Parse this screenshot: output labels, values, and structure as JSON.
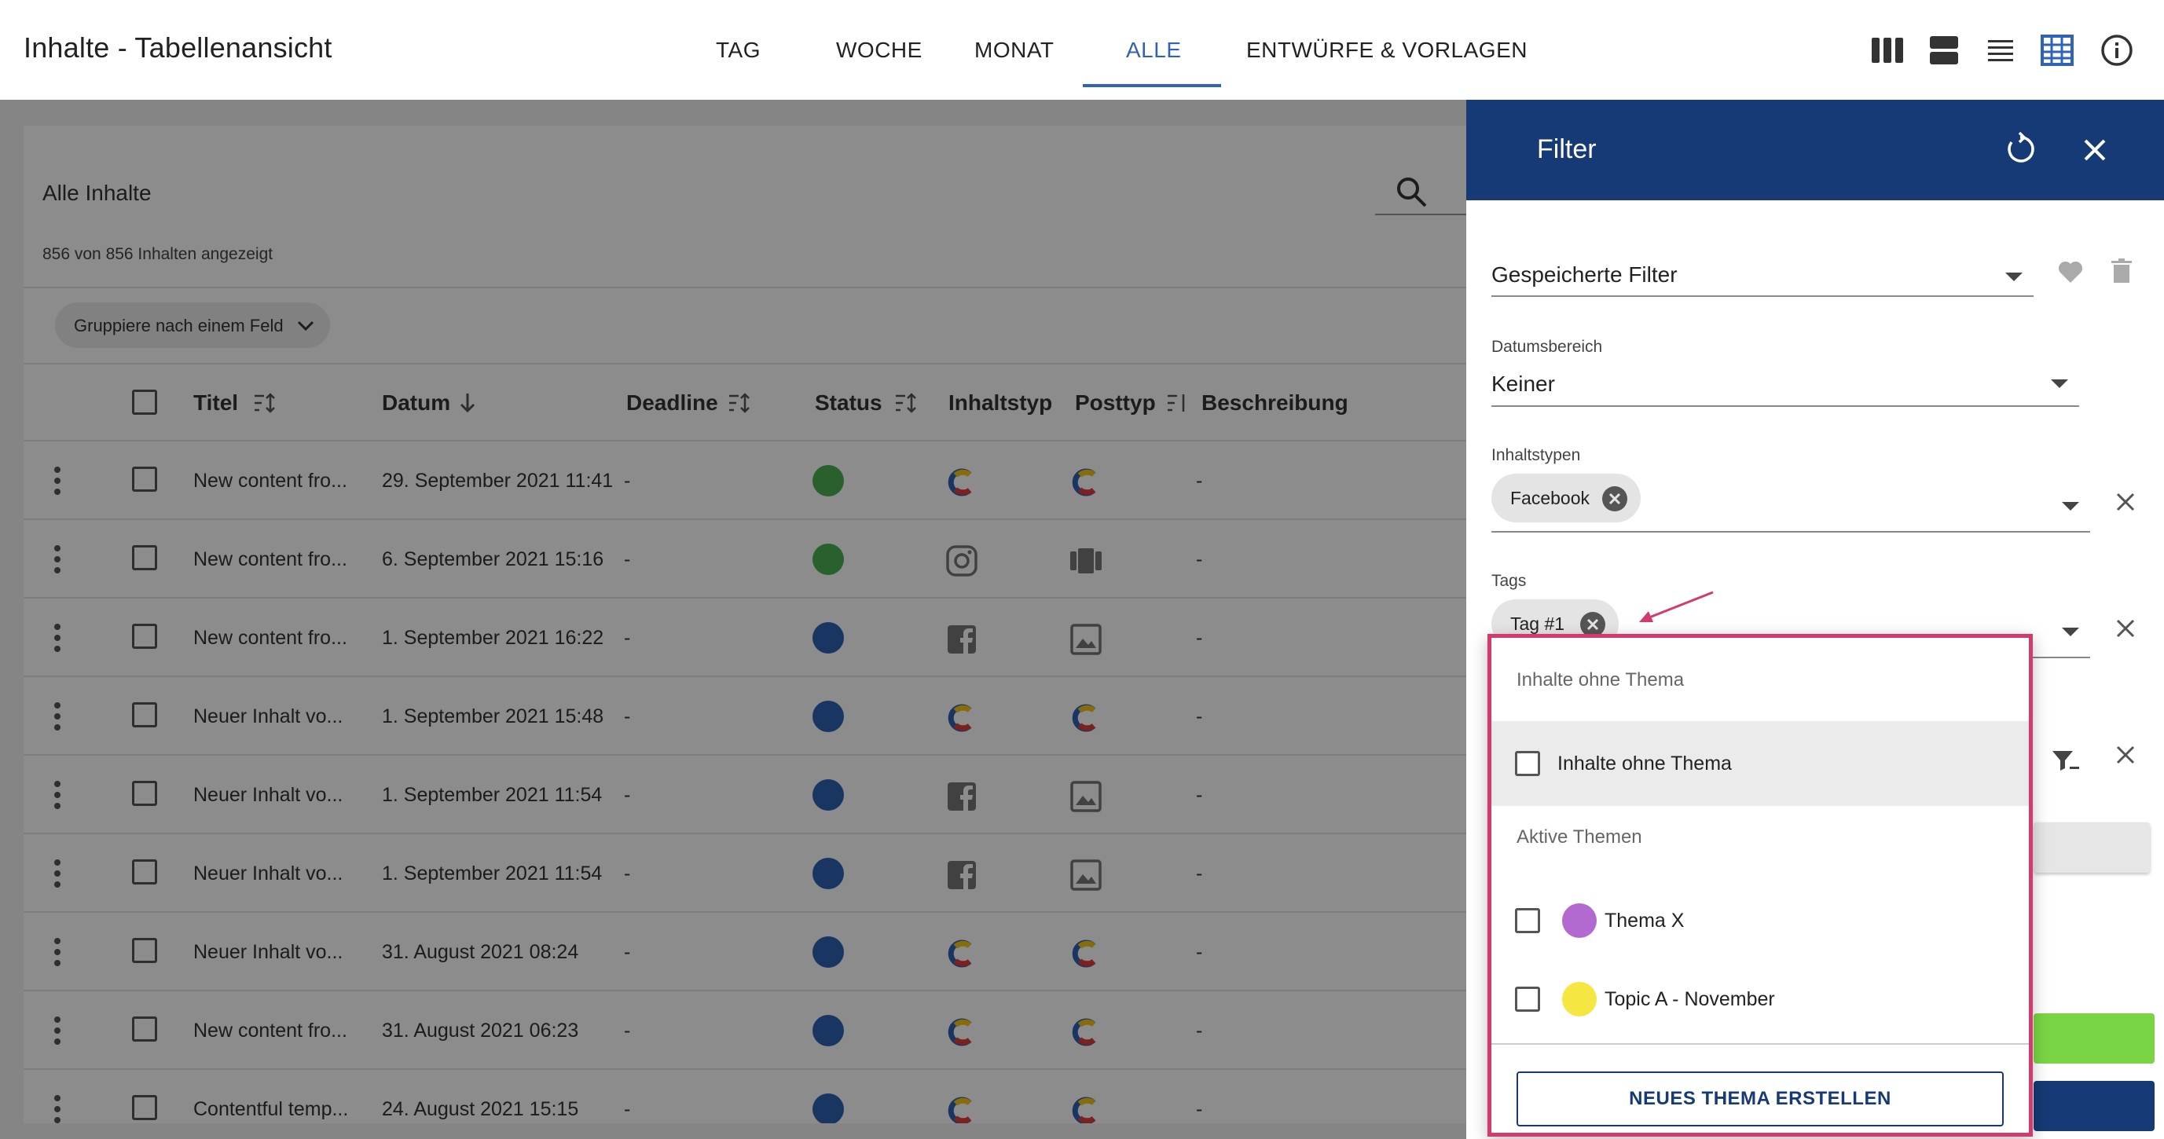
{
  "header": {
    "title": "Inhalte - Tabellenansicht",
    "tabs": [
      {
        "label": "TAG",
        "active": false
      },
      {
        "label": "WOCHE",
        "active": false
      },
      {
        "label": "MONAT",
        "active": false
      },
      {
        "label": "ALLE",
        "active": true
      },
      {
        "label": "ENTWÜRFE & VORLAGEN",
        "active": false
      }
    ],
    "view_icons": [
      "columns-view-icon",
      "rows-view-icon",
      "list-view-icon",
      "table-view-icon",
      "info-icon"
    ],
    "accent_color": "#2f63b5"
  },
  "content": {
    "title": "Alle Inhalte",
    "count_text": "856 von 856 Inhalten angezeigt",
    "group_label": "Gruppiere nach einem Feld",
    "columns": [
      "Titel",
      "Datum",
      "Deadline",
      "Status",
      "Inhaltstyp",
      "Posttyp",
      "Beschreibung"
    ],
    "rows": [
      {
        "title": "New content fro...",
        "date": "29. September 2021 11:41",
        "deadline": "-",
        "status_color": "#4caf50",
        "inhaltstyp": "contentful-icon",
        "posttyp": "contentful-icon",
        "description": "-"
      },
      {
        "title": "New content fro...",
        "date": "6. September 2021 15:16",
        "deadline": "-",
        "status_color": "#4caf50",
        "inhaltstyp": "instagram-icon",
        "posttyp": "carousel-icon",
        "description": "-"
      },
      {
        "title": "New content fro...",
        "date": "1. September 2021 16:22",
        "deadline": "-",
        "status_color": "#2f63b5",
        "inhaltstyp": "facebook-icon",
        "posttyp": "image-icon",
        "description": "-"
      },
      {
        "title": "Neuer Inhalt vo...",
        "date": "1. September 2021 15:48",
        "deadline": "-",
        "status_color": "#2f63b5",
        "inhaltstyp": "contentful-icon",
        "posttyp": "contentful-icon",
        "description": "-"
      },
      {
        "title": "Neuer Inhalt vo...",
        "date": "1. September 2021 11:54",
        "deadline": "-",
        "status_color": "#2f63b5",
        "inhaltstyp": "facebook-icon",
        "posttyp": "image-icon",
        "description": "-"
      },
      {
        "title": "Neuer Inhalt vo...",
        "date": "1. September 2021 11:54",
        "deadline": "-",
        "status_color": "#2f63b5",
        "inhaltstyp": "facebook-icon",
        "posttyp": "image-icon",
        "description": "-"
      },
      {
        "title": "Neuer Inhalt vo...",
        "date": "31. August 2021 08:24",
        "deadline": "-",
        "status_color": "#2f63b5",
        "inhaltstyp": "contentful-icon",
        "posttyp": "contentful-icon",
        "description": "-"
      },
      {
        "title": "New content fro...",
        "date": "31. August 2021 06:23",
        "deadline": "-",
        "status_color": "#2f63b5",
        "inhaltstyp": "contentful-icon",
        "posttyp": "contentful-icon",
        "description": "-"
      },
      {
        "title": "Contentful temp...",
        "date": "24. August 2021 15:15",
        "deadline": "-",
        "status_color": "#2f63b5",
        "inhaltstyp": "contentful-icon",
        "posttyp": "contentful-icon",
        "description": "-"
      }
    ]
  },
  "filter": {
    "title": "Filter",
    "saved_filter_label": "Gespeicherte Filter",
    "date_range_label": "Datumsbereich",
    "date_range_value": "Keiner",
    "content_types_label": "Inhaltstypen",
    "content_types_chips": [
      "Facebook"
    ],
    "tags_label": "Tags",
    "tags_chips": [
      "Tag #1"
    ],
    "header_color": "#163a76"
  },
  "topic_dropdown": {
    "section_no_topic": "Inhalte ohne Thema",
    "no_topic_option": "Inhalte ohne Thema",
    "section_active": "Aktive Themen",
    "topics": [
      {
        "label": "Thema X",
        "color": "#b36ad0"
      },
      {
        "label": "Topic A - November",
        "color": "#f5e642"
      }
    ],
    "create_button": "NEUES THEMA ERSTELLEN",
    "highlight_color": "#d23b6b"
  }
}
